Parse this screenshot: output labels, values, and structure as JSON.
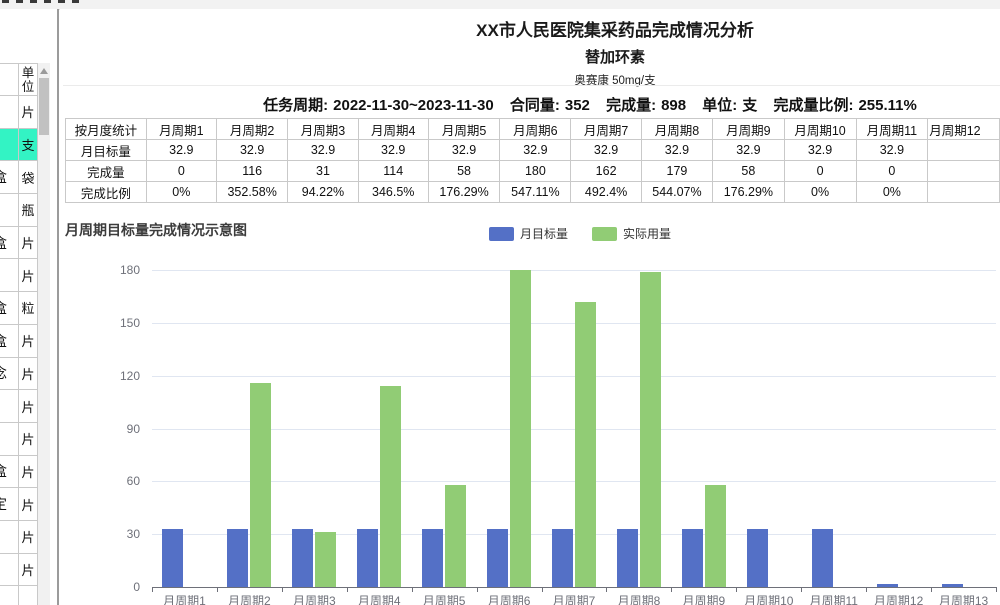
{
  "left_panel": {
    "col_header": "单位",
    "highlight_color": "#33f3c4",
    "rows": [
      {
        "left": "",
        "unit": "片",
        "highlight": false
      },
      {
        "left": "",
        "unit": "支",
        "highlight": true
      },
      {
        "left": "盒",
        "unit": "袋",
        "highlight": false
      },
      {
        "left": "",
        "unit": "瓶",
        "highlight": false
      },
      {
        "left": "盒",
        "unit": "片",
        "highlight": false
      },
      {
        "left": "",
        "unit": "片",
        "highlight": false
      },
      {
        "left": "盒",
        "unit": "粒",
        "highlight": false
      },
      {
        "left": "盒",
        "unit": "片",
        "highlight": false
      },
      {
        "left": "念",
        "unit": "片",
        "highlight": false
      },
      {
        "left": "",
        "unit": "片",
        "highlight": false
      },
      {
        "left": "",
        "unit": "片",
        "highlight": false
      },
      {
        "left": "盒",
        "unit": "片",
        "highlight": false
      },
      {
        "left": "定",
        "unit": "片",
        "highlight": false
      },
      {
        "left": "",
        "unit": "片",
        "highlight": false
      },
      {
        "left": "",
        "unit": "片",
        "highlight": false
      },
      {
        "left": "",
        "unit": "",
        "highlight": false
      }
    ]
  },
  "report": {
    "title": "XX市人民医院集采药品完成情况分析",
    "subtitle": "替加环素",
    "spec": "奥赛康 50mg/支",
    "summary": {
      "period_label": "任务周期:",
      "period": "2022-11-30~2023-11-30",
      "contract_label": "合同量:",
      "contract": "352",
      "completed_label": "完成量:",
      "completed": "898",
      "unit_label": "单位:",
      "unit": "支",
      "ratio_label": "完成量比例:",
      "ratio": "255.11%"
    },
    "table": {
      "corner": "按月度统计",
      "periods": [
        "月周期1",
        "月周期2",
        "月周期3",
        "月周期4",
        "月周期5",
        "月周期6",
        "月周期7",
        "月周期8",
        "月周期9",
        "月周期10",
        "月周期11",
        "月周期12"
      ],
      "rows": [
        {
          "label": "月目标量",
          "values": [
            "32.9",
            "32.9",
            "32.9",
            "32.9",
            "32.9",
            "32.9",
            "32.9",
            "32.9",
            "32.9",
            "32.9",
            "32.9",
            ""
          ]
        },
        {
          "label": "完成量",
          "values": [
            "0",
            "116",
            "31",
            "114",
            "58",
            "180",
            "162",
            "179",
            "58",
            "0",
            "0",
            ""
          ]
        },
        {
          "label": "完成比例",
          "values": [
            "0%",
            "352.58%",
            "94.22%",
            "346.5%",
            "176.29%",
            "547.11%",
            "492.4%",
            "544.07%",
            "176.29%",
            "0%",
            "0%",
            ""
          ]
        }
      ]
    }
  },
  "chart_data": {
    "type": "bar",
    "title": "月周期目标量完成情况示意图",
    "categories": [
      "月周期1",
      "月周期2",
      "月周期3",
      "月周期4",
      "月周期5",
      "月周期6",
      "月周期7",
      "月周期8",
      "月周期9",
      "月周期10",
      "月周期11",
      "月周期12",
      "月周期13"
    ],
    "series": [
      {
        "name": "月目标量",
        "color": "#5470c6",
        "values": [
          32.9,
          32.9,
          32.9,
          32.9,
          32.9,
          32.9,
          32.9,
          32.9,
          32.9,
          32.9,
          32.9,
          1.5,
          1.5
        ]
      },
      {
        "name": "实际用量",
        "color": "#91cc75",
        "values": [
          0,
          116,
          31,
          114,
          58,
          180,
          162,
          179,
          58,
          0,
          0,
          0,
          0
        ]
      }
    ],
    "ylim": [
      0,
      180
    ],
    "yticks": [
      0,
      30,
      60,
      90,
      120,
      150,
      180
    ],
    "xlabel": "",
    "ylabel": "",
    "grid": true,
    "legend_position": "top-center",
    "grid_color": "#E0E6F1",
    "axis_color": "#6E7079"
  }
}
